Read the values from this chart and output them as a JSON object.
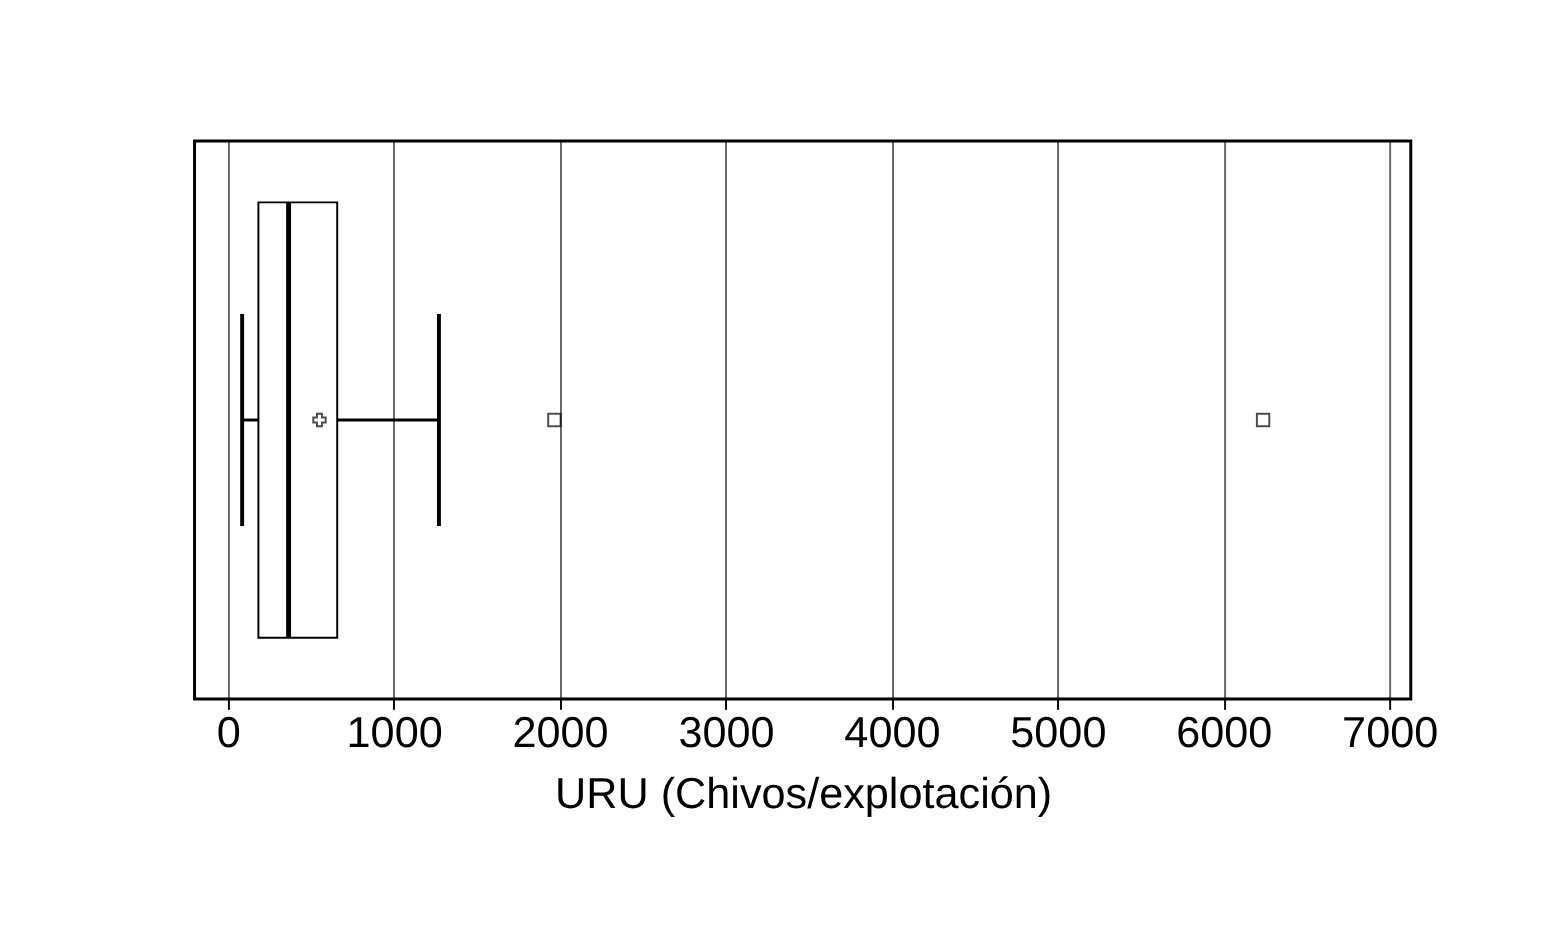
{
  "chart_data": {
    "type": "box",
    "orientation": "horizontal",
    "categories": [
      null
    ],
    "boxes": [
      {
        "low": 87,
        "q1": 185,
        "median": 367,
        "q3": 660,
        "high": 1273,
        "mean": 553,
        "outliers": [
          1969,
          6240
        ]
      }
    ],
    "xlabel": "URU (Chivos/explotación)",
    "xlim": [
      -200,
      7130
    ],
    "xticks": [
      0,
      1000,
      2000,
      3000,
      4000,
      5000,
      6000,
      7000
    ],
    "grid": "x",
    "tick_labels": "x"
  }
}
